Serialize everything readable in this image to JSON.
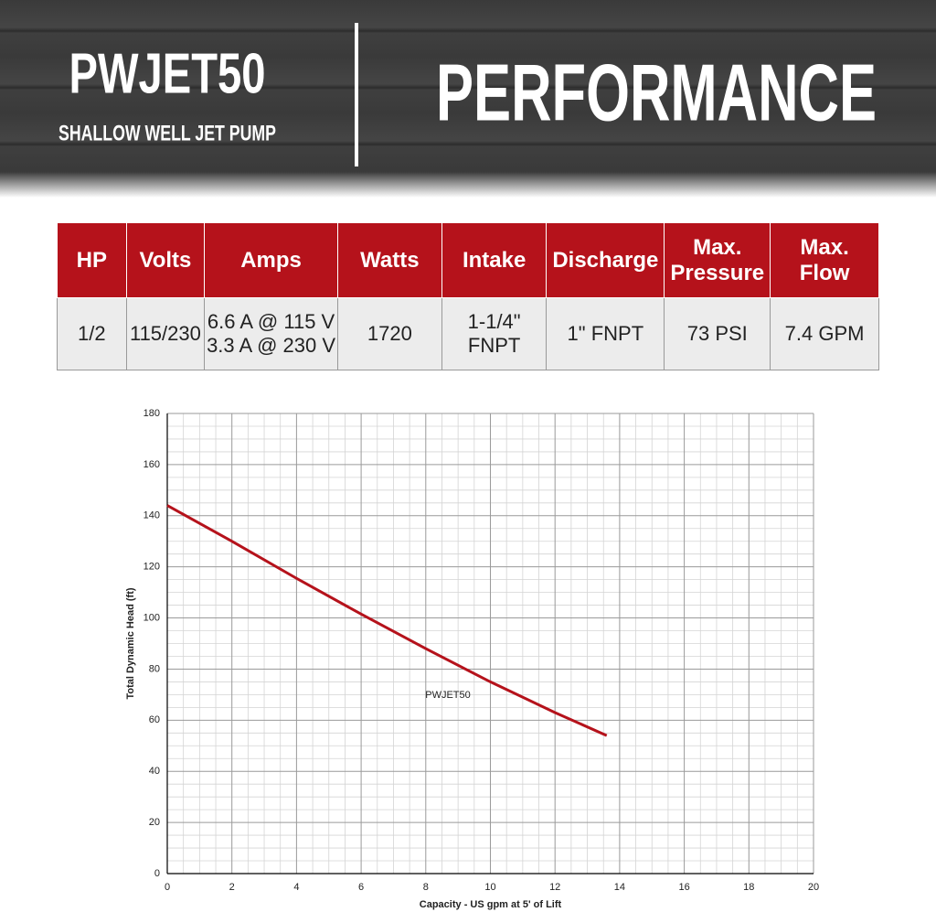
{
  "header": {
    "title": "PWJET50",
    "subtitle": "SHALLOW WELL JET PUMP",
    "heading": "PERFORMANCE"
  },
  "table": {
    "columns": [
      "HP",
      "Volts",
      "Amps",
      "Watts",
      "Intake",
      "Discharge",
      "Max. Pressure",
      "Max. Flow"
    ],
    "rows": [
      [
        "1/2",
        "115/230",
        [
          "6.6 A @ 115 V",
          "3.3 A @ 230 V"
        ],
        "1720",
        "1-1/4\" FNPT",
        "1\" FNPT",
        "73 PSI",
        "7.4 GPM"
      ]
    ]
  },
  "chart_data": {
    "type": "line",
    "x_label": "Capacity - US gpm at 5' of Lift",
    "y_label": "Total Dynamic Head (ft)",
    "x": [
      0,
      2,
      4,
      6,
      8,
      10,
      12,
      13.6
    ],
    "series": [
      {
        "name": "PWJET50",
        "color": "#b5121b",
        "values": [
          144,
          130,
          115.5,
          101.5,
          88,
          75,
          63,
          54
        ]
      }
    ],
    "xlim": [
      0,
      20
    ],
    "xticks": [
      0,
      2,
      4,
      6,
      8,
      10,
      12,
      14,
      16,
      18,
      20
    ],
    "ylim": [
      0,
      180
    ],
    "yticks": [
      0,
      20,
      40,
      60,
      80,
      100,
      120,
      140,
      160,
      180
    ],
    "grid": true,
    "minor_grid": true
  }
}
